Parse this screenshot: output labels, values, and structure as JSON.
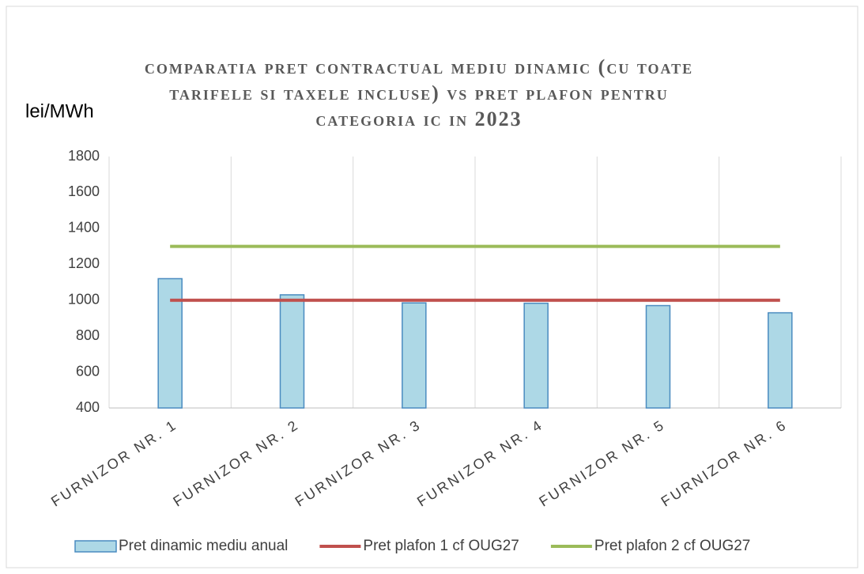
{
  "chart_data": {
    "type": "bar",
    "title": "COMPARATIA PRET CONTRACTUAL MEDIU DINAMIC (CU TOATE TARIFELE SI TAXELE INCLUSE) VS PRET PLAFON PENTRU CATEGORIA IC IN 2023",
    "y_label": "lei/MWh",
    "categories": [
      "FURNIZOR NR. 1",
      "FURNIZOR NR. 2",
      "FURNIZOR NR. 3",
      "FURNIZOR NR. 4",
      "FURNIZOR NR. 5",
      "FURNIZOR NR. 6"
    ],
    "series": [
      {
        "name": "Pret dinamic mediu anual",
        "type": "bar",
        "color": "#add8e6",
        "values": [
          1120,
          1030,
          985,
          983,
          970,
          930
        ]
      },
      {
        "name": "Pret plafon 1 cf OUG27",
        "type": "line",
        "color": "#c0504d",
        "values": [
          1000,
          1000,
          1000,
          1000,
          1000,
          1000
        ]
      },
      {
        "name": "Pret plafon 2 cf OUG27",
        "type": "line",
        "color": "#9bbb59",
        "values": [
          1300,
          1300,
          1300,
          1300,
          1300,
          1300
        ]
      }
    ],
    "ylim": [
      400,
      1800
    ],
    "yticks": [
      400,
      600,
      800,
      1000,
      1200,
      1400,
      1600,
      1800
    ],
    "legend": "bottom"
  }
}
